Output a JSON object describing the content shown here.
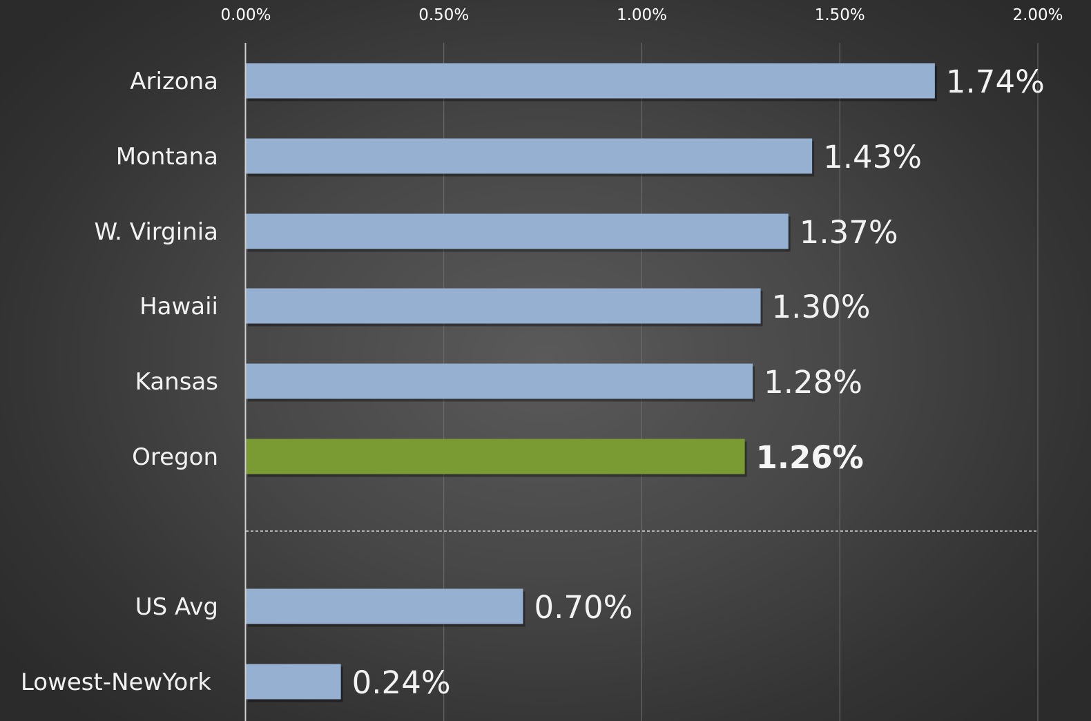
{
  "chart_data": {
    "type": "bar",
    "orientation": "horizontal",
    "title": "",
    "xlabel": "",
    "ylabel": "",
    "xlim": [
      0,
      0.02
    ],
    "x_ticks": [
      "0.00%",
      "0.50%",
      "1.00%",
      "1.50%",
      "2.00%"
    ],
    "x_axis_position": "top",
    "grid": true,
    "legend": "none",
    "categories": [
      "Arizona",
      "Montana",
      "W. Virginia",
      "Hawaii",
      "Kansas",
      "Oregon",
      "US Avg",
      "Lowest-NewYork"
    ],
    "values": [
      0.0174,
      0.0143,
      0.0137,
      0.013,
      0.0128,
      0.0126,
      0.007,
      0.0024
    ],
    "data_labels": [
      "1.74%",
      "1.43%",
      "1.37%",
      "1.30%",
      "1.28%",
      "1.26%",
      "0.70%",
      "0.24%"
    ],
    "highlight_category": "Oregon",
    "separator_after_category": "Oregon",
    "colors": {
      "bar": "#95b0d0",
      "highlight_bar": "#7a9a34",
      "gridline": "#6e6e6e",
      "axis": "#cfcfcf",
      "separator": "#d8d8d8",
      "text": "#f2f2f2"
    }
  }
}
